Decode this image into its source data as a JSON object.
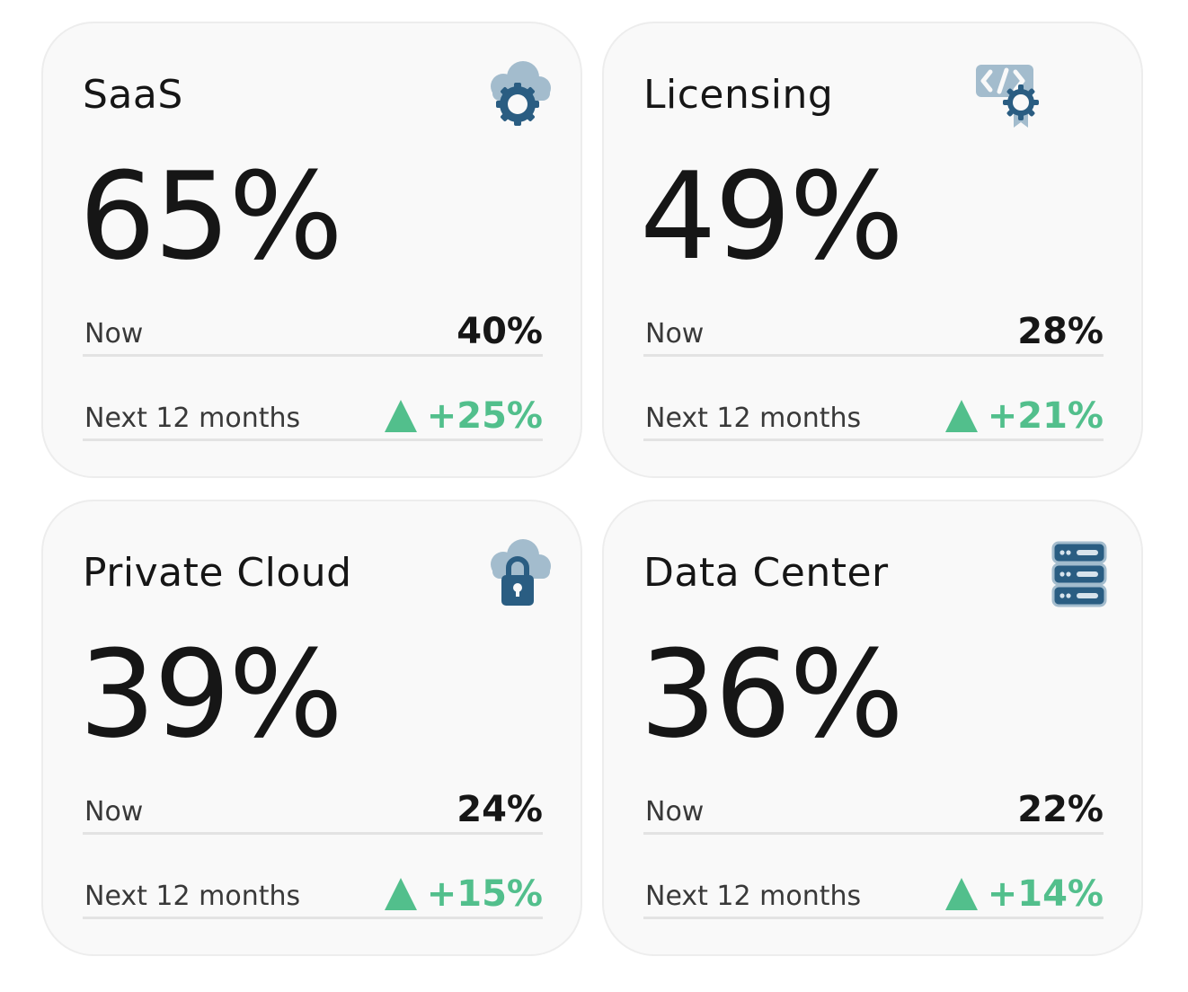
{
  "colors": {
    "accent_green": "#52bf8c",
    "icon_dark_blue": "#2a5d82",
    "icon_light_blue": "#a3bccd",
    "card_background": "#f9f9f9"
  },
  "cards": [
    {
      "title": "SaaS",
      "icon": "cloud-gear-icon",
      "value": "65%",
      "now_label": "Now",
      "now_value": "40%",
      "next_label": "Next 12 months",
      "next_change": "+25%"
    },
    {
      "title": "Licensing",
      "icon": "code-certificate-icon",
      "value": "49%",
      "now_label": "Now",
      "now_value": "28%",
      "next_label": "Next 12 months",
      "next_change": "+21%"
    },
    {
      "title": "Private Cloud",
      "icon": "cloud-lock-icon",
      "value": "39%",
      "now_label": "Now",
      "now_value": "24%",
      "next_label": "Next 12 months",
      "next_change": "+15%"
    },
    {
      "title": "Data Center",
      "icon": "server-rack-icon",
      "value": "36%",
      "now_label": "Now",
      "now_value": "22%",
      "next_label": "Next 12 months",
      "next_change": "+14%"
    }
  ]
}
